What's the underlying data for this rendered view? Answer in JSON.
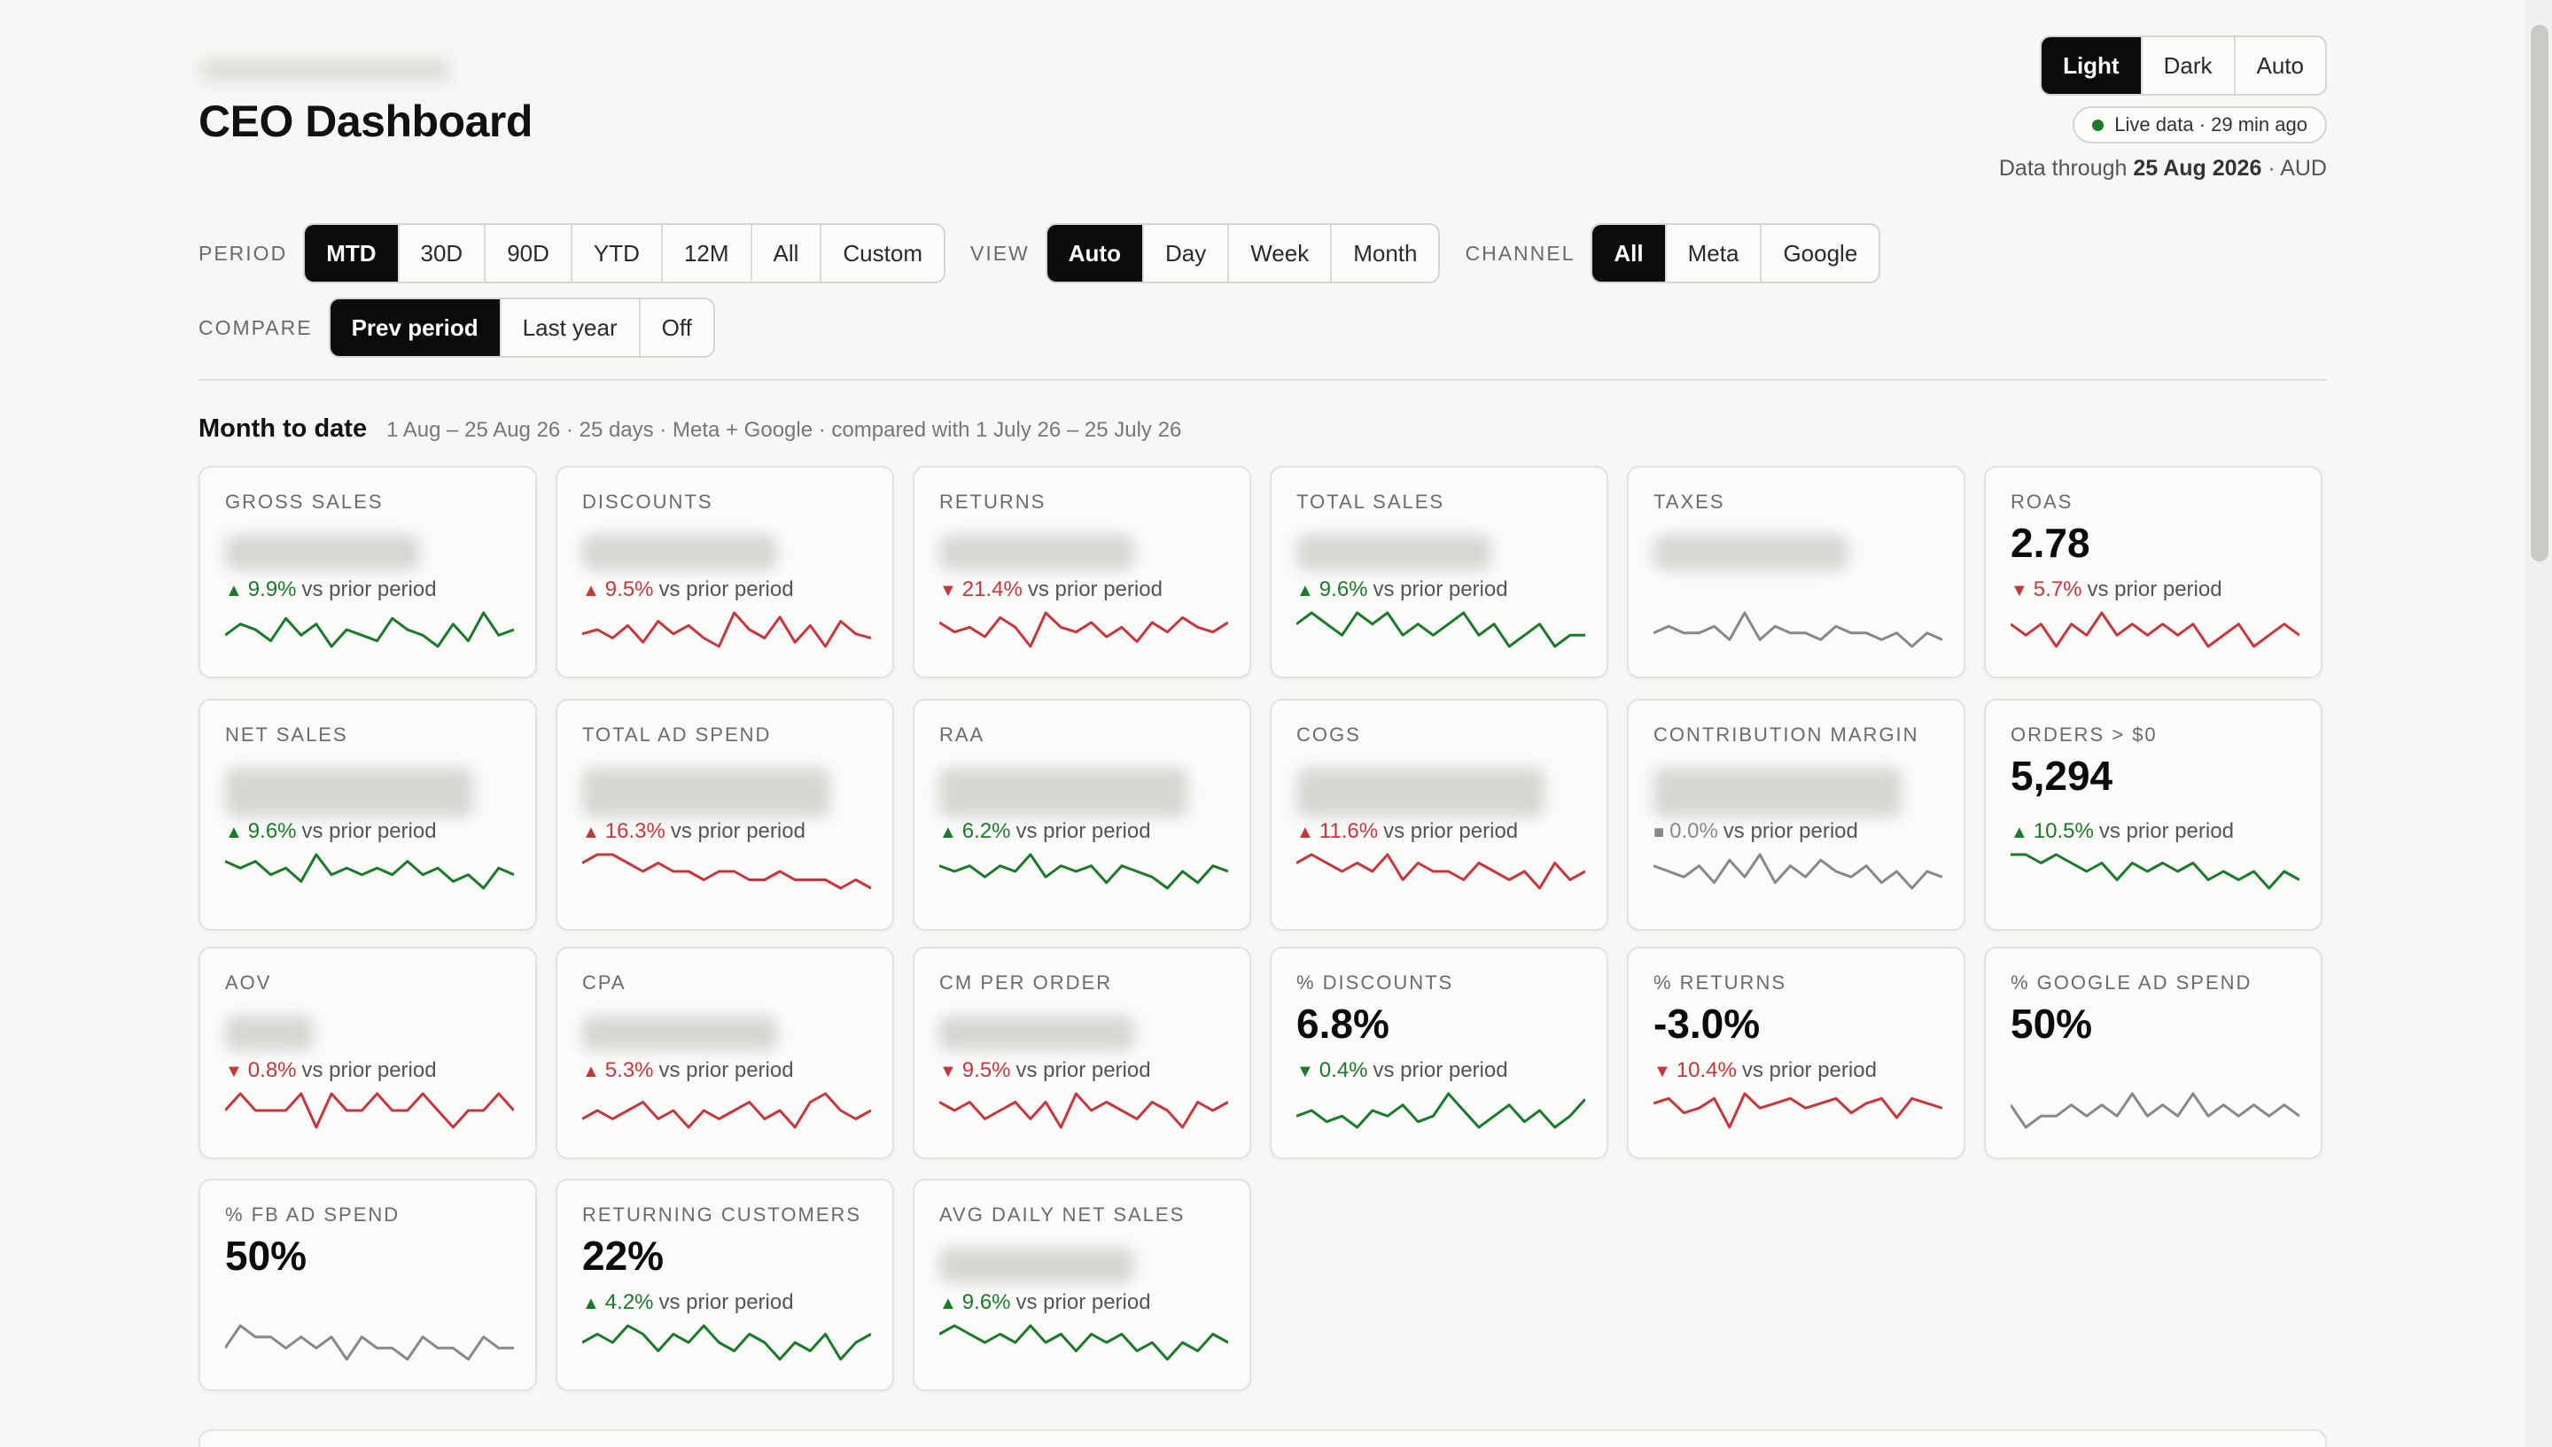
{
  "header": {
    "title": "CEO Dashboard",
    "theme": {
      "options": [
        "Light",
        "Dark",
        "Auto"
      ],
      "selected": "Light"
    },
    "live": "Live data · 29 min ago",
    "data_through_prefix": "Data through",
    "data_through_date": "25 Aug 2026",
    "data_through_suffix": "· AUD"
  },
  "filters": {
    "period": {
      "label": "PERIOD",
      "options": [
        "MTD",
        "30D",
        "90D",
        "YTD",
        "12M",
        "All",
        "Custom"
      ],
      "selected": "MTD"
    },
    "view": {
      "label": "VIEW",
      "options": [
        "Auto",
        "Day",
        "Week",
        "Month"
      ],
      "selected": "Auto"
    },
    "channel": {
      "label": "CHANNEL",
      "options": [
        "All",
        "Meta",
        "Google"
      ],
      "selected": "All"
    },
    "compare": {
      "label": "COMPARE",
      "options": [
        "Prev period",
        "Last year",
        "Off"
      ],
      "selected": "Prev period"
    }
  },
  "section": {
    "title": "Month to date",
    "subtitle": "1 Aug – 25 Aug 26 · 25 days · Meta + Google · compared with 1 July 26 – 25 July 26"
  },
  "colors": {
    "good": "#1a7a2a",
    "bad": "#c8363d",
    "neutral": "#888888",
    "active": "#0b0b0b"
  },
  "cards": [
    {
      "label": "GROSS SALES",
      "value": "",
      "blurred": true,
      "dir": "up",
      "tone": "good",
      "pct": "9.9%",
      "vs": "vs prior period",
      "spark": [
        5,
        7,
        6,
        4,
        8,
        5,
        7,
        3,
        6,
        5,
        4,
        8,
        6,
        5,
        3,
        7,
        4,
        9,
        5,
        6
      ]
    },
    {
      "label": "DISCOUNTS",
      "value": "",
      "blurred": true,
      "dir": "up",
      "tone": "bad",
      "pct": "9.5%",
      "vs": "vs prior period",
      "spark": [
        4,
        5,
        3,
        6,
        2,
        7,
        4,
        6,
        3,
        1,
        9,
        5,
        3,
        8,
        2,
        6,
        1,
        7,
        4,
        3
      ]
    },
    {
      "label": "RETURNS",
      "value": "",
      "blurred": true,
      "dir": "down",
      "tone": "bad",
      "pct": "21.4%",
      "vs": "vs prior period",
      "spark": [
        6,
        4,
        5,
        3,
        7,
        5,
        1,
        8,
        5,
        4,
        6,
        3,
        5,
        2,
        6,
        4,
        7,
        5,
        4,
        6
      ]
    },
    {
      "label": "TOTAL SALES",
      "value": "",
      "blurred": true,
      "dir": "up",
      "tone": "good",
      "pct": "9.6%",
      "vs": "vs prior period",
      "spark": [
        6,
        7,
        6,
        5,
        7,
        6,
        7,
        5,
        6,
        5,
        6,
        7,
        5,
        6,
        4,
        5,
        6,
        4,
        5,
        5
      ]
    },
    {
      "label": "TAXES",
      "value": "",
      "blurred": true,
      "dir": "none",
      "tone": "neutral",
      "pct": "",
      "vs": "",
      "spark": [
        5,
        6,
        5,
        5,
        6,
        4,
        8,
        4,
        6,
        5,
        5,
        4,
        6,
        5,
        5,
        4,
        5,
        3,
        5,
        4
      ]
    },
    {
      "label": "ROAS",
      "value": "2.78",
      "blurred": false,
      "dir": "down",
      "tone": "bad",
      "pct": "5.7%",
      "vs": "vs prior period",
      "spark": [
        6,
        5,
        6,
        4,
        6,
        5,
        7,
        5,
        6,
        5,
        6,
        5,
        6,
        4,
        5,
        6,
        4,
        5,
        6,
        5
      ]
    },
    {
      "label": "NET SALES",
      "value": "",
      "blurred": true,
      "dir": "up",
      "tone": "good",
      "pct": "9.6%",
      "vs": "vs prior period",
      "spark": [
        7,
        6,
        7,
        5,
        6,
        4,
        8,
        5,
        6,
        5,
        6,
        5,
        7,
        5,
        6,
        4,
        5,
        3,
        6,
        5
      ]
    },
    {
      "label": "TOTAL AD SPEND",
      "value": "",
      "blurred": true,
      "dir": "up",
      "tone": "bad",
      "pct": "16.3%",
      "vs": "vs prior period",
      "spark": [
        7,
        8,
        8,
        7,
        6,
        7,
        6,
        6,
        5,
        6,
        6,
        5,
        5,
        6,
        5,
        5,
        5,
        4,
        5,
        4
      ]
    },
    {
      "label": "RAA",
      "value": "",
      "blurred": true,
      "dir": "up",
      "tone": "good",
      "pct": "6.2%",
      "vs": "vs prior period",
      "spark": [
        6,
        5,
        6,
        4,
        6,
        5,
        8,
        4,
        6,
        5,
        6,
        3,
        6,
        5,
        4,
        2,
        5,
        3,
        6,
        5
      ]
    },
    {
      "label": "COGS",
      "value": "",
      "blurred": true,
      "dir": "up",
      "tone": "bad",
      "pct": "11.6%",
      "vs": "vs prior period",
      "spark": [
        6,
        7,
        6,
        5,
        6,
        5,
        7,
        4,
        6,
        5,
        5,
        4,
        6,
        5,
        4,
        5,
        3,
        6,
        4,
        5
      ]
    },
    {
      "label": "CONTRIBUTION MARGIN",
      "value": "",
      "blurred": true,
      "dir": "flat",
      "tone": "neutral",
      "pct": "0.0%",
      "vs": "vs prior period",
      "spark": [
        6,
        5,
        4,
        6,
        3,
        7,
        4,
        8,
        3,
        6,
        4,
        7,
        5,
        4,
        6,
        3,
        5,
        2,
        5,
        4
      ]
    },
    {
      "label": "ORDERS > $0",
      "value": "5,294",
      "blurred": false,
      "dir": "up",
      "tone": "good",
      "pct": "10.5%",
      "vs": "vs prior period",
      "spark": [
        7,
        7,
        6,
        7,
        6,
        5,
        6,
        4,
        6,
        5,
        6,
        5,
        6,
        4,
        5,
        4,
        5,
        3,
        5,
        4
      ]
    },
    {
      "label": "AOV",
      "value": "",
      "blurred": true,
      "dir": "down",
      "tone": "bad",
      "pct": "0.8%",
      "vs": "vs prior period",
      "spark": [
        5,
        6,
        5,
        5,
        5,
        6,
        4,
        6,
        5,
        5,
        6,
        5,
        5,
        6,
        5,
        4,
        5,
        5,
        6,
        5
      ]
    },
    {
      "label": "CPA",
      "value": "",
      "blurred": true,
      "dir": "up",
      "tone": "bad",
      "pct": "5.3%",
      "vs": "vs prior period",
      "spark": [
        4,
        5,
        4,
        5,
        6,
        4,
        5,
        3,
        5,
        4,
        5,
        6,
        4,
        5,
        3,
        6,
        7,
        5,
        4,
        5
      ]
    },
    {
      "label": "CM PER ORDER",
      "value": "",
      "blurred": true,
      "dir": "down",
      "tone": "bad",
      "pct": "9.5%",
      "vs": "vs prior period",
      "spark": [
        6,
        5,
        6,
        4,
        5,
        6,
        4,
        6,
        3,
        7,
        5,
        6,
        5,
        4,
        6,
        5,
        3,
        6,
        5,
        6
      ]
    },
    {
      "label": "% DISCOUNTS",
      "value": "6.8%",
      "blurred": false,
      "dir": "down",
      "tone": "good",
      "pct": "0.4%",
      "vs": "vs prior period",
      "spark": [
        5,
        6,
        4,
        5,
        3,
        6,
        5,
        7,
        4,
        5,
        9,
        6,
        3,
        5,
        7,
        4,
        6,
        3,
        5,
        8
      ]
    },
    {
      "label": "% RETURNS",
      "value": "-3.0%",
      "blurred": false,
      "dir": "down",
      "tone": "bad",
      "pct": "10.4%",
      "vs": "vs prior period",
      "spark": [
        6,
        7,
        4,
        5,
        7,
        1,
        8,
        5,
        6,
        7,
        5,
        6,
        7,
        4,
        6,
        7,
        3,
        7,
        6,
        5
      ]
    },
    {
      "label": "% GOOGLE AD SPEND",
      "value": "50%",
      "blurred": false,
      "dir": "none",
      "tone": "neutral",
      "pct": "",
      "vs": "",
      "spark": [
        6,
        4,
        5,
        5,
        6,
        5,
        6,
        5,
        7,
        5,
        6,
        5,
        7,
        5,
        6,
        5,
        6,
        5,
        6,
        5
      ]
    },
    {
      "label": "% FB AD SPEND",
      "value": "50%",
      "blurred": false,
      "dir": "none",
      "tone": "neutral",
      "pct": "",
      "vs": "",
      "spark": [
        5,
        7,
        6,
        6,
        5,
        6,
        5,
        6,
        4,
        6,
        5,
        5,
        4,
        6,
        5,
        5,
        4,
        6,
        5,
        5
      ]
    },
    {
      "label": "RETURNING CUSTOMERS",
      "value": "22%",
      "blurred": false,
      "dir": "up",
      "tone": "good",
      "pct": "4.2%",
      "vs": "vs prior period",
      "spark": [
        5,
        6,
        5,
        7,
        6,
        4,
        6,
        5,
        7,
        5,
        4,
        6,
        5,
        3,
        5,
        4,
        6,
        3,
        5,
        6
      ]
    },
    {
      "label": "AVG DAILY NET SALES",
      "value": "",
      "blurred": true,
      "dir": "up",
      "tone": "good",
      "pct": "9.6%",
      "vs": "vs prior period",
      "spark": [
        6,
        7,
        6,
        5,
        6,
        5,
        7,
        5,
        6,
        4,
        6,
        5,
        6,
        4,
        5,
        3,
        5,
        4,
        6,
        5
      ]
    }
  ]
}
